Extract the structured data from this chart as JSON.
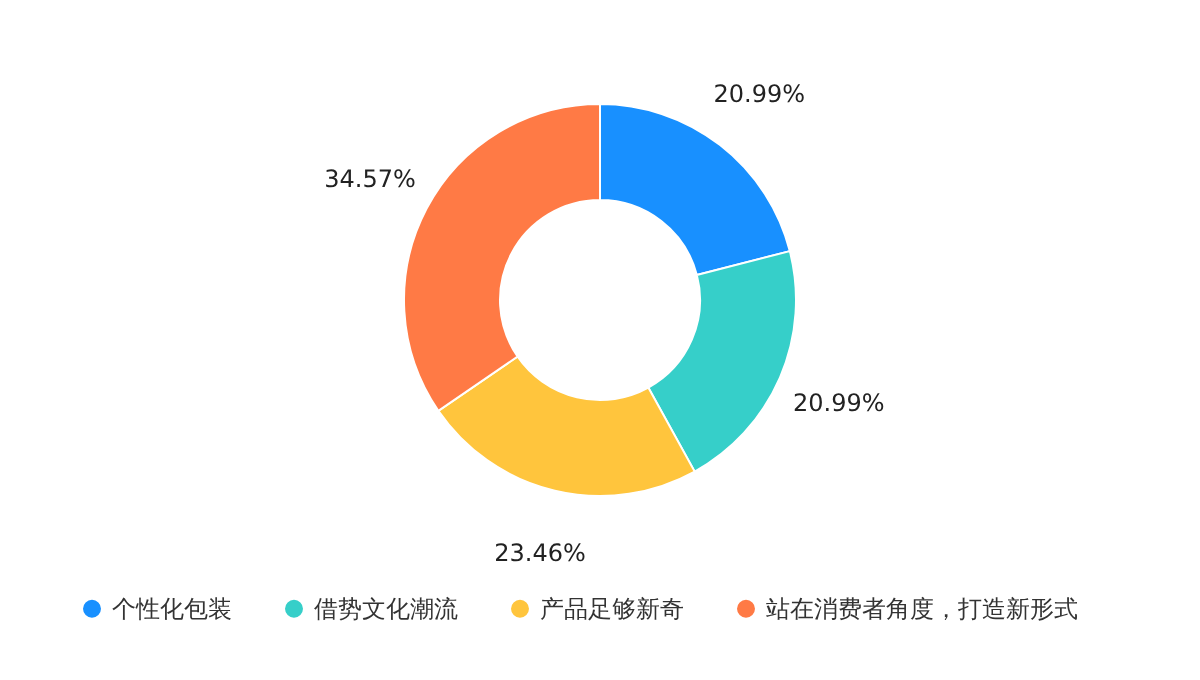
{
  "chart_data": {
    "type": "donut",
    "categories": [
      "个性化包装",
      "借势文化潮流",
      "产品足够新奇",
      "站在消费者角度，打造新形式"
    ],
    "values": [
      20.99,
      20.99,
      23.46,
      34.57
    ],
    "colors": [
      "#1890ff",
      "#36cfc9",
      "#ffc53d",
      "#ff7a45"
    ],
    "value_labels": [
      "20.99%",
      "20.99%",
      "23.46%",
      "34.57%"
    ],
    "legend": "bottom"
  }
}
